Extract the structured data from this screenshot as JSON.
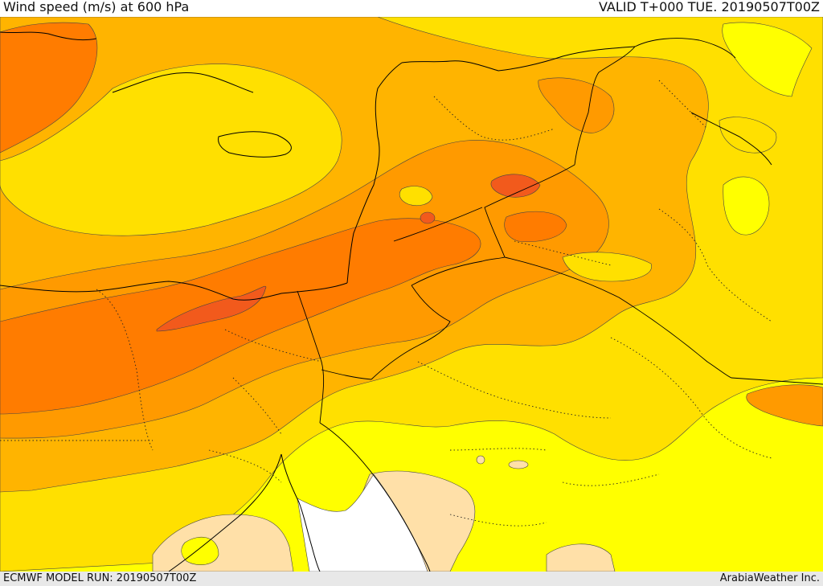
{
  "header": {
    "title": "Wind speed (m/s) at 600 hPa",
    "valid": "VALID T+000 TUE. 20190507T00Z"
  },
  "footer": {
    "model_run": "ECMWF MODEL RUN: 20190507T00Z",
    "credit": "ArabiaWeather Inc."
  },
  "colors": {
    "band_0": "#ffffff",
    "band_1": "#ffe0a8",
    "band_2": "#ffff00",
    "band_3": "#ffe000",
    "band_4": "#ffb400",
    "band_5": "#ff9a00",
    "band_6": "#ff7c00",
    "band_7": "#f25a1c"
  }
}
